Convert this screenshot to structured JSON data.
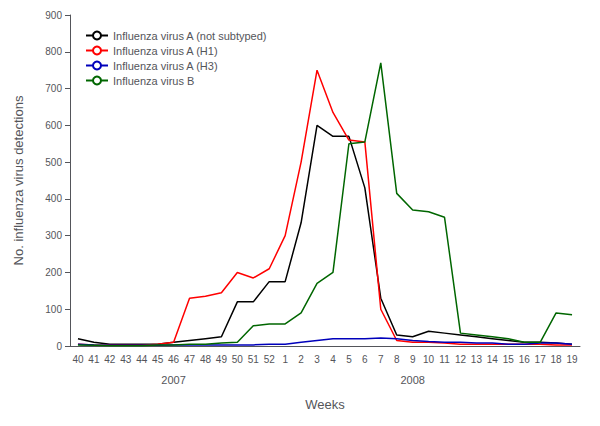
{
  "chart_data": {
    "type": "line",
    "xlabel": "Weeks",
    "ylabel": "No. influenza virus detections",
    "categories": [
      40,
      41,
      42,
      43,
      44,
      45,
      46,
      47,
      48,
      49,
      50,
      51,
      52,
      1,
      2,
      3,
      4,
      5,
      6,
      7,
      8,
      9,
      10,
      11,
      12,
      13,
      14,
      15,
      16,
      17,
      18,
      19
    ],
    "series": [
      {
        "name": "Influenza virus A (not subtyped)",
        "color": "#000000",
        "values": [
          20,
          10,
          5,
          5,
          5,
          5,
          10,
          15,
          20,
          25,
          120,
          120,
          175,
          175,
          335,
          600,
          570,
          570,
          430,
          130,
          30,
          25,
          40,
          35,
          30,
          25,
          20,
          15,
          10,
          10,
          8,
          5
        ]
      },
      {
        "name": "Influenza virus A (H1)",
        "color": "#ff0000",
        "values": [
          5,
          3,
          2,
          2,
          2,
          5,
          10,
          130,
          135,
          145,
          200,
          185,
          210,
          300,
          500,
          750,
          635,
          560,
          555,
          100,
          15,
          10,
          10,
          8,
          5,
          5,
          5,
          5,
          5,
          5,
          3,
          3
        ]
      },
      {
        "name": "Influenza virus A (H3)",
        "color": "#0000bb",
        "values": [
          5,
          3,
          2,
          2,
          2,
          2,
          3,
          3,
          3,
          3,
          3,
          3,
          5,
          5,
          10,
          15,
          20,
          20,
          20,
          22,
          20,
          15,
          12,
          10,
          10,
          8,
          8,
          5,
          5,
          8,
          8,
          5
        ]
      },
      {
        "name": "Influenza virus B",
        "color": "#006600",
        "values": [
          3,
          2,
          1,
          1,
          1,
          3,
          3,
          5,
          5,
          8,
          10,
          55,
          60,
          60,
          90,
          170,
          200,
          550,
          555,
          770,
          415,
          370,
          365,
          350,
          35,
          30,
          25,
          20,
          10,
          10,
          90,
          85
        ]
      }
    ],
    "ylim": [
      0,
      900
    ],
    "yticks": [
      0,
      100,
      200,
      300,
      400,
      500,
      600,
      700,
      800,
      900
    ],
    "annotations": [
      {
        "text": "2007",
        "x": 46
      },
      {
        "text": "2008",
        "x": 9
      }
    ],
    "legend": "upper left",
    "grid": false
  }
}
